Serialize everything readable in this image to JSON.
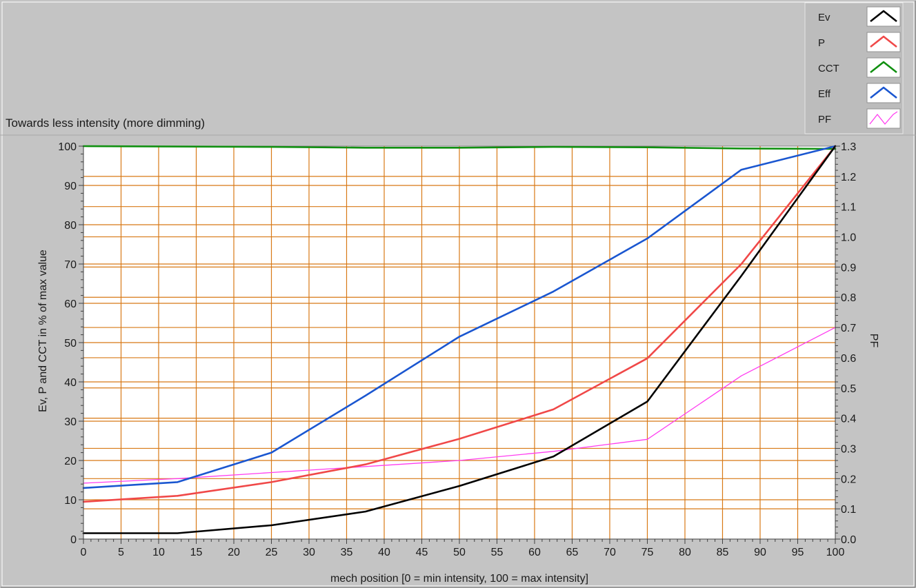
{
  "caption": "Towards less intensity (more dimming)",
  "legend": {
    "placement": "top-right",
    "items": [
      {
        "label": "Ev",
        "color": "#000000",
        "style": "thick"
      },
      {
        "label": "P",
        "color": "#f04848",
        "style": "thick"
      },
      {
        "label": "CCT",
        "color": "#109010",
        "style": "thick"
      },
      {
        "label": "Eff",
        "color": "#1a56d0",
        "style": "thick"
      },
      {
        "label": "PF",
        "color": "#ff3cf0",
        "style": "thin"
      }
    ]
  },
  "colors": {
    "background": "#c4c4c4",
    "plot_area": "#ffffff",
    "grid": "#d87814"
  },
  "chart_data": {
    "type": "line",
    "title": "",
    "xlabel": "mech position [0 = min intensity, 100 = max intensity]",
    "ylabel": "Ev, P and CCT in % of max value",
    "y2label": "PF",
    "xlim": [
      0,
      100
    ],
    "ylim": [
      0,
      100
    ],
    "y2lim": [
      0,
      1.3
    ],
    "grid": true,
    "x_ticks": [
      0,
      5,
      10,
      15,
      20,
      25,
      30,
      35,
      40,
      45,
      50,
      55,
      60,
      65,
      70,
      75,
      80,
      85,
      90,
      95,
      100
    ],
    "y_ticks": [
      0,
      10,
      20,
      30,
      40,
      50,
      60,
      70,
      80,
      90,
      100
    ],
    "y2_ticks": [
      "0.0",
      "0.1",
      "0.2",
      "0.3",
      "0.4",
      "0.5",
      "0.6",
      "0.7",
      "0.8",
      "0.9",
      "1.0",
      "1.1",
      "1.2",
      "1.3"
    ],
    "series": [
      {
        "name": "Ev",
        "axis": "left",
        "x": [
          0,
          12.5,
          25,
          37.5,
          50,
          62.5,
          75,
          87.5,
          100
        ],
        "y": [
          1.5,
          1.5,
          3.5,
          7,
          13.5,
          21,
          35,
          67,
          100
        ]
      },
      {
        "name": "P",
        "axis": "left",
        "x": [
          0,
          12.5,
          25,
          37.5,
          50,
          62.5,
          75,
          87.5,
          100
        ],
        "y": [
          9.5,
          11,
          14.5,
          19,
          25.5,
          33,
          46,
          70,
          100
        ]
      },
      {
        "name": "CCT",
        "axis": "left",
        "x": [
          0,
          25,
          37.5,
          50,
          62.5,
          75,
          87.5,
          100
        ],
        "y": [
          100,
          99.8,
          99.6,
          99.6,
          99.8,
          99.7,
          99.4,
          99.3
        ]
      },
      {
        "name": "Eff",
        "axis": "left",
        "x": [
          0,
          12.5,
          25,
          37.5,
          50,
          62.5,
          75,
          87.5,
          100
        ],
        "y": [
          13,
          14.5,
          22,
          36.5,
          51.5,
          63,
          76.5,
          94,
          100
        ]
      },
      {
        "name": "PF",
        "axis": "right",
        "x": [
          0,
          12.5,
          25,
          37.5,
          50,
          62.5,
          75,
          87.5,
          100
        ],
        "y": [
          0.185,
          0.2,
          0.22,
          0.24,
          0.26,
          0.29,
          0.33,
          0.54,
          0.7
        ]
      }
    ]
  }
}
